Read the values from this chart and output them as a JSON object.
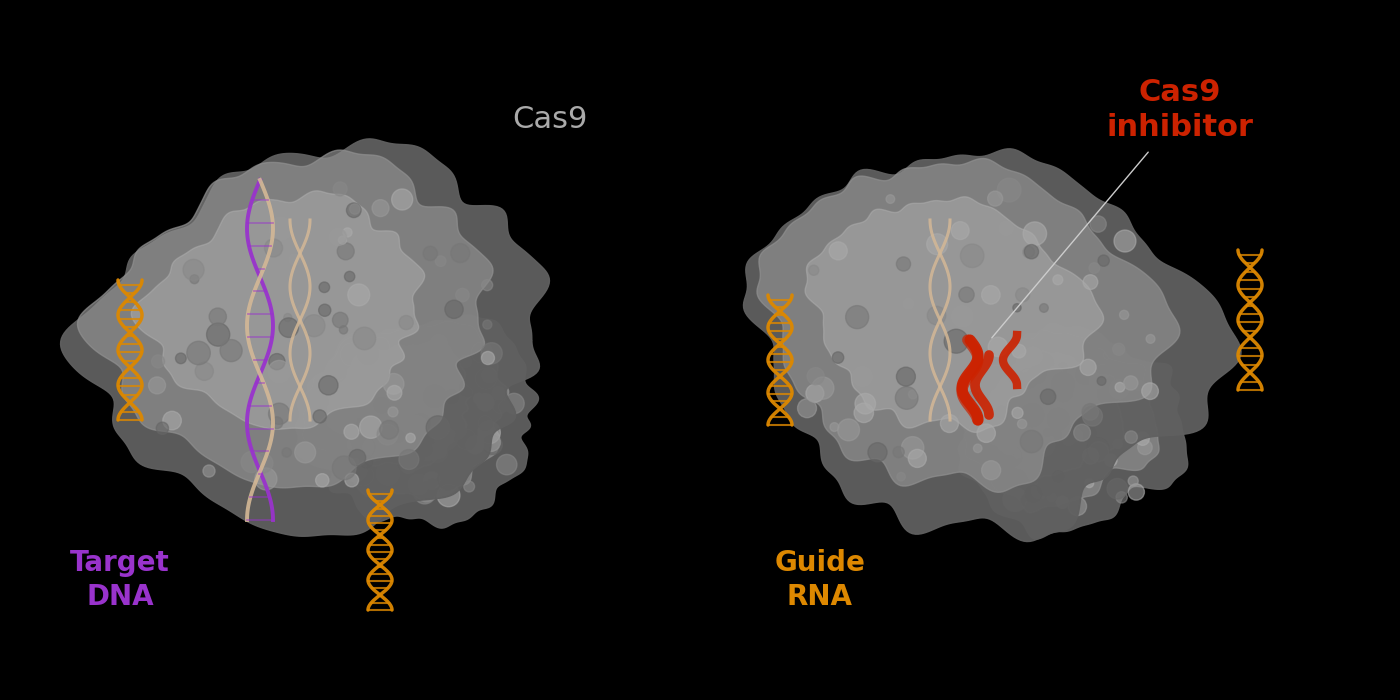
{
  "background_color": "#000000",
  "cas9_label": "Cas9",
  "cas9_label_color": "#aaaaaa",
  "cas9_label_fontsize": 22,
  "cas9_inhibitor_label": "Cas9\ninhibitor",
  "cas9_inhibitor_color": "#cc2200",
  "cas9_inhibitor_fontsize": 22,
  "target_dna_label": "Target\nDNA",
  "target_dna_color": "#9933cc",
  "target_dna_fontsize": 20,
  "guide_rna_label": "Guide\nRNA",
  "guide_rna_color": "#dd8800",
  "guide_rna_fontsize": 20,
  "protein_color_left": "#aaaaaa",
  "protein_color_right": "#aaaaaa",
  "inhibitor_red": "#cc2200",
  "dna_purple": "#9933cc",
  "dna_wheat": "#d4b896",
  "rna_orange": "#dd8800",
  "fig_width": 14.0,
  "fig_height": 7.0,
  "dpi": 100
}
